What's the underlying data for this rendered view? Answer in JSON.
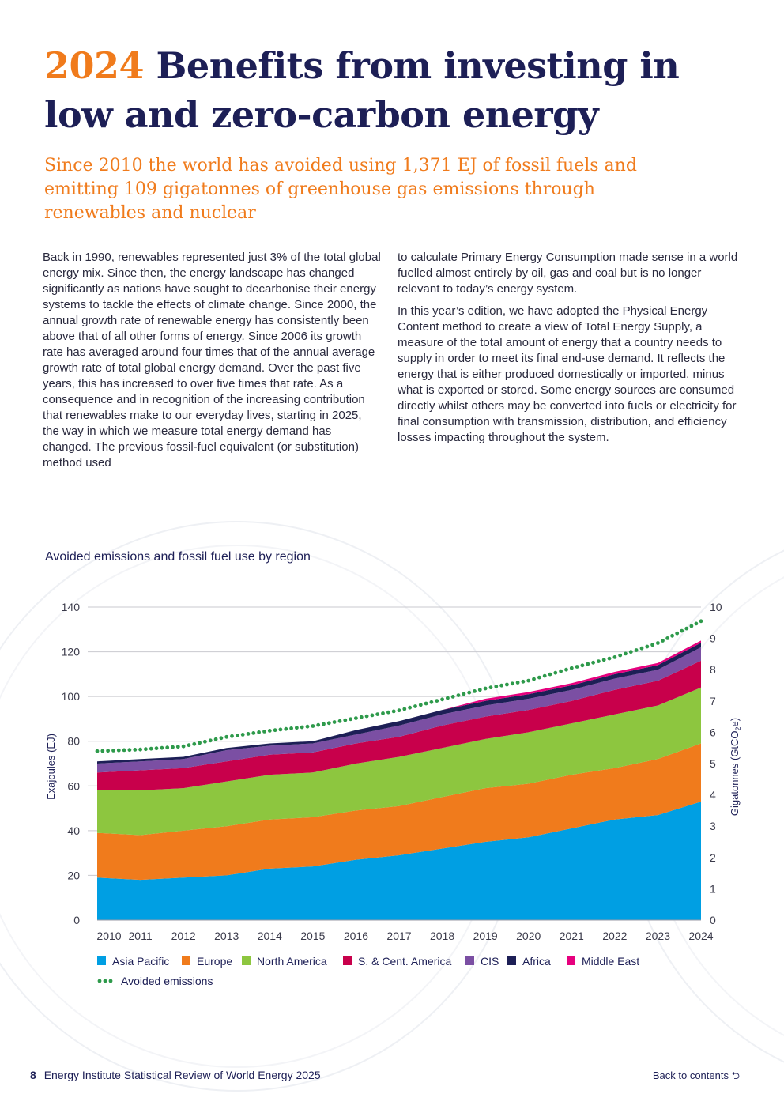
{
  "header": {
    "title_year": "2024",
    "title_rest": "Benefits from investing in low and zero-carbon energy",
    "subtitle": "Since 2010 the world has avoided using 1,371 EJ of fossil fuels and emitting 109 gigatonnes of greenhouse gas emissions through renewables and nuclear"
  },
  "body": {
    "left_paragraph": "Back in 1990, renewables represented just 3% of the total global energy mix. Since then, the energy landscape has changed significantly as nations have sought to decarbonise their energy systems to tackle the effects of climate change. Since 2000, the annual growth rate of renewable energy has consistently been above that of all other forms of energy. Since 2006 its growth rate has averaged around four times that of the annual average growth rate of total global energy demand. Over the past five years, this has increased to over five times that rate. As a consequence and in recognition of the increasing contribution that renewables make to our everyday lives, starting in 2025, the way in which we measure total energy demand has changed. The previous fossil-fuel equivalent (or substitution) method used",
    "right_paragraph_1": "to calculate Primary Energy Consumption made sense in a world fuelled almost entirely by oil, gas and coal but is no longer relevant to today’s energy system.",
    "right_paragraph_2": "In this year’s edition, we have adopted the Physical Energy Content method to create a view of Total Energy Supply, a measure of the total amount of energy that a country needs to supply in order to meet its final end-use demand. It reflects the energy that is either produced domestically or imported, minus what is exported or stored. Some energy sources are consumed directly whilst others may be converted into fuels or electricity for final consumption with transmission, distribution, and efficiency losses impacting throughout the system."
  },
  "chart_data": {
    "type": "area",
    "title": "Avoided emissions and fossil fuel use by region",
    "stacked": true,
    "x": [
      2010,
      2011,
      2012,
      2013,
      2014,
      2015,
      2016,
      2017,
      2018,
      2019,
      2020,
      2021,
      2022,
      2023,
      2024
    ],
    "ylabel": "Exajoules (EJ)",
    "ylim": [
      0,
      140
    ],
    "yticks": [
      0,
      20,
      40,
      60,
      80,
      100,
      120,
      140
    ],
    "y2label_parts": [
      "Gigatonnes (GtCO",
      "2",
      "e)"
    ],
    "y2lim": [
      0,
      10
    ],
    "y2ticks": [
      0,
      1,
      2,
      3,
      4,
      5,
      6,
      7,
      8,
      9,
      10
    ],
    "grid": "horizontal",
    "legend_position": "bottom-left",
    "series": [
      {
        "name": "Asia Pacific",
        "color": "#009fe3",
        "values": [
          19,
          18,
          19,
          20,
          23,
          24,
          27,
          29,
          32,
          35,
          37,
          41,
          45,
          47,
          53
        ]
      },
      {
        "name": "Europe",
        "color": "#f07b1c",
        "values": [
          20,
          20,
          21,
          22,
          22,
          22,
          22,
          22,
          23,
          24,
          24,
          24,
          23,
          25,
          26
        ]
      },
      {
        "name": "North America",
        "color": "#8dc63f",
        "values": [
          19,
          20,
          19,
          20,
          20,
          20,
          21,
          22,
          22,
          22,
          23,
          23,
          24,
          24,
          25
        ]
      },
      {
        "name": "S. & Cent. America",
        "color": "#c8004b",
        "values": [
          8,
          9,
          9,
          9,
          9,
          9,
          9,
          9,
          10,
          10,
          10,
          10,
          11,
          11,
          12
        ]
      },
      {
        "name": "CIS",
        "color": "#7b4fa3",
        "values": [
          4,
          4,
          4,
          5,
          4,
          4,
          4,
          5,
          5,
          5,
          5,
          5,
          5,
          5,
          6
        ]
      },
      {
        "name": "Africa",
        "color": "#1d1f56",
        "values": [
          1,
          1,
          1,
          1,
          1,
          1,
          2,
          2,
          2,
          2,
          2,
          2,
          2,
          2,
          2
        ]
      },
      {
        "name": "Middle East",
        "color": "#e6007e",
        "values": [
          0,
          0,
          0,
          0,
          0,
          0,
          0,
          0,
          0,
          1,
          1,
          1,
          1,
          1,
          1
        ]
      }
    ],
    "line_series": {
      "name": "Avoided emissions",
      "color": "#2e9a4b",
      "axis": "right",
      "values": [
        5.4,
        5.45,
        5.55,
        5.85,
        6.05,
        6.2,
        6.45,
        6.7,
        7.05,
        7.4,
        7.65,
        8.05,
        8.4,
        8.85,
        9.55
      ]
    }
  },
  "footer": {
    "page_number": "8",
    "publisher": "Energy Institute",
    "publication": "Statistical Review of World Energy 2025",
    "back_link": "Back to contents ⮌"
  }
}
